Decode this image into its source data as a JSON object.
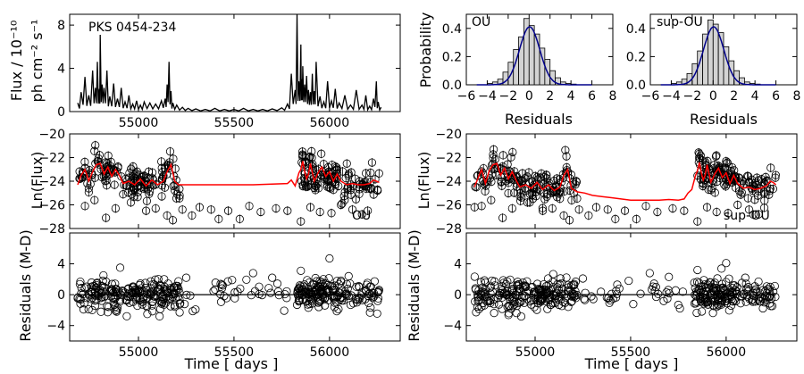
{
  "figure": {
    "title": "PKS 0454-234",
    "models": [
      "OU",
      "sup-OU"
    ]
  },
  "colors": {
    "model_line": "#ff0000",
    "hist_fill": "#d3d3d3",
    "gauss_line": "#00008b",
    "markers": "#000000"
  },
  "chart_data": [
    {
      "id": "lightcurve",
      "type": "line",
      "annotation": "PKS 0454-234",
      "xlabel": "",
      "ylabel_lines": [
        "Flux / 10⁻¹⁰",
        "ph cm⁻² s⁻¹"
      ],
      "xlim": [
        54640,
        56370
      ],
      "ylim": [
        0,
        9
      ],
      "xticks": [
        55000,
        55500,
        56000
      ],
      "yticks": [
        0,
        4,
        8
      ],
      "x": [
        54682,
        54700,
        54720,
        54740,
        54760,
        54775,
        54785,
        54795,
        54800,
        54810,
        54820,
        54835,
        54850,
        54870,
        54890,
        54910,
        54930,
        54950,
        54970,
        54990,
        55010,
        55030,
        55060,
        55090,
        55120,
        55140,
        55150,
        55160,
        55170,
        55180,
        55200,
        55230,
        55260,
        55300,
        55350,
        55400,
        55450,
        55500,
        55550,
        55600,
        55650,
        55700,
        55750,
        55780,
        55800,
        55820,
        55830,
        55840,
        55850,
        55855,
        55860,
        55870,
        55880,
        55890,
        55900,
        55910,
        55920,
        55930,
        55950,
        55970,
        55990,
        56010,
        56030,
        56050,
        56080,
        56110,
        56140,
        56170,
        56190,
        56210,
        56230,
        56245,
        56255,
        56270
      ],
      "y": [
        0.8,
        1.8,
        3.2,
        1.5,
        3.8,
        2.2,
        4.6,
        2.1,
        7.1,
        2.5,
        2.2,
        3.8,
        1.4,
        2.6,
        1.2,
        2.2,
        0.9,
        1.5,
        0.7,
        1.0,
        0.6,
        0.9,
        0.8,
        0.7,
        1.0,
        1.2,
        2.5,
        4.6,
        1.9,
        0.8,
        0.6,
        0.4,
        0.3,
        0.25,
        0.2,
        0.3,
        0.2,
        0.2,
        0.3,
        0.2,
        0.2,
        0.25,
        0.35,
        0.7,
        3.5,
        2.0,
        9.0,
        2.8,
        6.2,
        3.0,
        4.2,
        2.5,
        3.3,
        2.0,
        1.8,
        3.5,
        1.9,
        4.6,
        1.4,
        0.9,
        2.8,
        1.0,
        2.1,
        0.8,
        1.5,
        0.6,
        2.0,
        0.6,
        1.5,
        0.5,
        1.2,
        2.8,
        0.9,
        0.4
      ]
    },
    {
      "id": "hist_ou",
      "type": "bar",
      "annotation": "OU",
      "xlabel": "Residuals",
      "ylabel": "Probability",
      "xlim": [
        -6,
        8
      ],
      "ylim": [
        0,
        0.5
      ],
      "xticks": [
        -6,
        -4,
        -2,
        0,
        2,
        4,
        6,
        8
      ],
      "yticks": [
        0.0,
        0.2,
        0.4
      ],
      "bin_edges": [
        -4,
        -3.5,
        -3,
        -2.5,
        -2,
        -1.5,
        -1,
        -0.5,
        0,
        0.5,
        1,
        1.5,
        2,
        2.5,
        3,
        3.5,
        4,
        4.5
      ],
      "values": [
        0.01,
        0.02,
        0.04,
        0.09,
        0.16,
        0.25,
        0.34,
        0.47,
        0.42,
        0.36,
        0.26,
        0.18,
        0.1,
        0.05,
        0.02,
        0.01,
        0.005
      ],
      "gaussian": {
        "mean": 0.05,
        "sigma": 0.97
      }
    },
    {
      "id": "hist_supou",
      "type": "bar",
      "annotation": "sup-OU",
      "xlabel": "Residuals",
      "ylabel": "",
      "xlim": [
        -6,
        8
      ],
      "ylim": [
        0,
        0.5
      ],
      "xticks": [
        -6,
        -4,
        -2,
        0,
        2,
        4,
        6,
        8
      ],
      "yticks": [
        0.0,
        0.2,
        0.4
      ],
      "bin_edges": [
        -4,
        -3.5,
        -3,
        -2.5,
        -2,
        -1.5,
        -1,
        -0.5,
        0,
        0.5,
        1,
        1.5,
        2,
        2.5,
        3,
        3.5,
        4,
        4.5
      ],
      "values": [
        0.01,
        0.02,
        0.04,
        0.08,
        0.15,
        0.24,
        0.36,
        0.46,
        0.43,
        0.37,
        0.27,
        0.17,
        0.1,
        0.05,
        0.02,
        0.01,
        0.005
      ],
      "gaussian": {
        "mean": 0.05,
        "sigma": 0.97
      }
    },
    {
      "id": "fit_ou",
      "type": "scatter",
      "annotation": "OU",
      "xlabel": "",
      "ylabel": "Ln(Flux)",
      "xlim": [
        54640,
        56370
      ],
      "ylim": [
        -28,
        -20
      ],
      "xticks": [
        55000,
        55500,
        56000
      ],
      "yticks": [
        -28,
        -26,
        -24,
        -22,
        -20
      ],
      "model_x": [
        54682,
        54700,
        54720,
        54740,
        54760,
        54780,
        54800,
        54820,
        54840,
        54860,
        54880,
        54900,
        54920,
        54950,
        54980,
        55010,
        55040,
        55070,
        55100,
        55130,
        55150,
        55170,
        55190,
        55210,
        55260,
        55400,
        55600,
        55780,
        55800,
        55820,
        55840,
        55850,
        55860,
        55870,
        55880,
        55890,
        55900,
        55920,
        55940,
        55960,
        55980,
        56000,
        56020,
        56040,
        56060,
        56090,
        56120,
        56150,
        56180,
        56210,
        56230,
        56245,
        56260
      ],
      "model_y": [
        -24.3,
        -23.5,
        -23.0,
        -24.0,
        -23.2,
        -22.6,
        -22.5,
        -23.4,
        -22.8,
        -23.6,
        -23.0,
        -23.5,
        -24.2,
        -24.0,
        -24.3,
        -23.8,
        -24.4,
        -23.9,
        -24.3,
        -24.0,
        -23.2,
        -22.6,
        -24.0,
        -24.3,
        -24.3,
        -24.3,
        -24.3,
        -24.2,
        -23.9,
        -24.4,
        -23.3,
        -23.0,
        -22.3,
        -23.2,
        -23.8,
        -23.4,
        -22.5,
        -24.0,
        -23.3,
        -22.8,
        -23.6,
        -23.2,
        -24.0,
        -23.4,
        -24.0,
        -24.3,
        -24.2,
        -24.3,
        -24.3,
        -24.2,
        -23.9,
        -24.0,
        -24.1
      ],
      "outliers_x": [
        54720,
        54770,
        54830,
        54880,
        54960,
        55040,
        55090,
        55150,
        55180,
        55230,
        55280,
        55320,
        55380,
        55420,
        55470,
        55530,
        55580,
        55640,
        55720,
        55780,
        55850,
        55900,
        55950,
        56010,
        56060,
        56120,
        56170
      ],
      "outliers_y": [
        -26.1,
        -25.6,
        -27.1,
        -26.3,
        -25.8,
        -26.5,
        -26.3,
        -26.9,
        -27.3,
        -26.4,
        -26.9,
        -26.2,
        -26.4,
        -27.2,
        -26.5,
        -27.2,
        -26.1,
        -26.6,
        -26.3,
        -26.5,
        -27.4,
        -26.2,
        -26.6,
        -26.7,
        -26.0,
        -26.4,
        -26.8
      ]
    },
    {
      "id": "fit_supou",
      "type": "scatter",
      "annotation": "sup-OU",
      "xlabel": "",
      "ylabel": "Ln(Flux)",
      "xlim": [
        54640,
        56370
      ],
      "ylim": [
        -28,
        -20
      ],
      "xticks": [
        55000,
        55500,
        56000
      ],
      "yticks": [
        -28,
        -26,
        -24,
        -22,
        -20
      ],
      "model_x": [
        54682,
        54700,
        54720,
        54740,
        54760,
        54780,
        54800,
        54820,
        54840,
        54860,
        54880,
        54900,
        54920,
        54950,
        54980,
        55010,
        55040,
        55070,
        55100,
        55130,
        55150,
        55170,
        55190,
        55220,
        55260,
        55300,
        55350,
        55400,
        55450,
        55500,
        55550,
        55600,
        55650,
        55700,
        55750,
        55780,
        55800,
        55820,
        55840,
        55850,
        55860,
        55870,
        55880,
        55890,
        55900,
        55920,
        55940,
        55960,
        55980,
        56000,
        56020,
        56040,
        56060,
        56090,
        56120,
        56150,
        56180,
        56210,
        56230,
        56245,
        56260
      ],
      "model_y": [
        -24.5,
        -23.8,
        -23.0,
        -24.2,
        -23.1,
        -22.6,
        -22.5,
        -23.5,
        -22.9,
        -23.8,
        -23.2,
        -23.9,
        -24.5,
        -24.3,
        -24.6,
        -24.1,
        -24.7,
        -24.3,
        -24.8,
        -24.5,
        -23.5,
        -23.0,
        -24.6,
        -24.9,
        -25.0,
        -25.2,
        -25.3,
        -25.4,
        -25.5,
        -25.6,
        -25.6,
        -25.6,
        -25.6,
        -25.55,
        -25.6,
        -25.5,
        -25.0,
        -24.7,
        -23.5,
        -23.1,
        -22.4,
        -23.3,
        -23.9,
        -23.5,
        -22.6,
        -24.1,
        -23.4,
        -22.9,
        -23.7,
        -23.3,
        -24.2,
        -23.5,
        -24.2,
        -24.6,
        -24.5,
        -24.7,
        -24.6,
        -24.4,
        -24.0,
        -24.1,
        -24.3
      ],
      "outliers_x": [
        54720,
        54770,
        54830,
        54880,
        54960,
        55040,
        55090,
        55150,
        55180,
        55230,
        55280,
        55320,
        55380,
        55420,
        55470,
        55530,
        55580,
        55640,
        55720,
        55780,
        55850,
        55900,
        55950,
        56010,
        56060,
        56120,
        56170
      ],
      "outliers_y": [
        -26.1,
        -25.6,
        -27.1,
        -26.3,
        -25.8,
        -26.5,
        -26.3,
        -26.9,
        -27.3,
        -26.4,
        -26.9,
        -26.2,
        -26.4,
        -27.2,
        -26.5,
        -27.2,
        -26.1,
        -26.6,
        -26.3,
        -26.5,
        -27.4,
        -26.2,
        -26.6,
        -26.7,
        -26.0,
        -26.4,
        -26.8
      ]
    },
    {
      "id": "resid_ou",
      "type": "scatter",
      "annotation": "",
      "xlabel": "Time [ days ]",
      "ylabel": "Residuals (M-D)",
      "xlim": [
        54640,
        56370
      ],
      "ylim": [
        -6,
        8
      ],
      "xticks": [
        55000,
        55500,
        56000
      ],
      "yticks": [
        -4,
        0,
        4
      ],
      "zero_line": 0,
      "highlights_x": [
        55250,
        55430,
        55490,
        55600,
        55700,
        55850,
        56000,
        56100
      ],
      "highlights_y": [
        2.2,
        1.4,
        1.9,
        2.8,
        2.2,
        3.1,
        4.7,
        2.4
      ]
    },
    {
      "id": "resid_supou",
      "type": "scatter",
      "annotation": "",
      "xlabel": "Time [ days ]",
      "ylabel": "Residuals (M-D)",
      "xlim": [
        54640,
        56370
      ],
      "ylim": [
        -6,
        8
      ],
      "xticks": [
        55000,
        55500,
        56000
      ],
      "yticks": [
        -4,
        0,
        4
      ],
      "zero_line": 0,
      "highlights_x": [
        55250,
        55430,
        55490,
        55600,
        55700,
        55850,
        56000,
        56100
      ],
      "highlights_y": [
        2.1,
        1.3,
        1.8,
        2.8,
        2.3,
        3.2,
        4.1,
        2.2
      ]
    }
  ]
}
